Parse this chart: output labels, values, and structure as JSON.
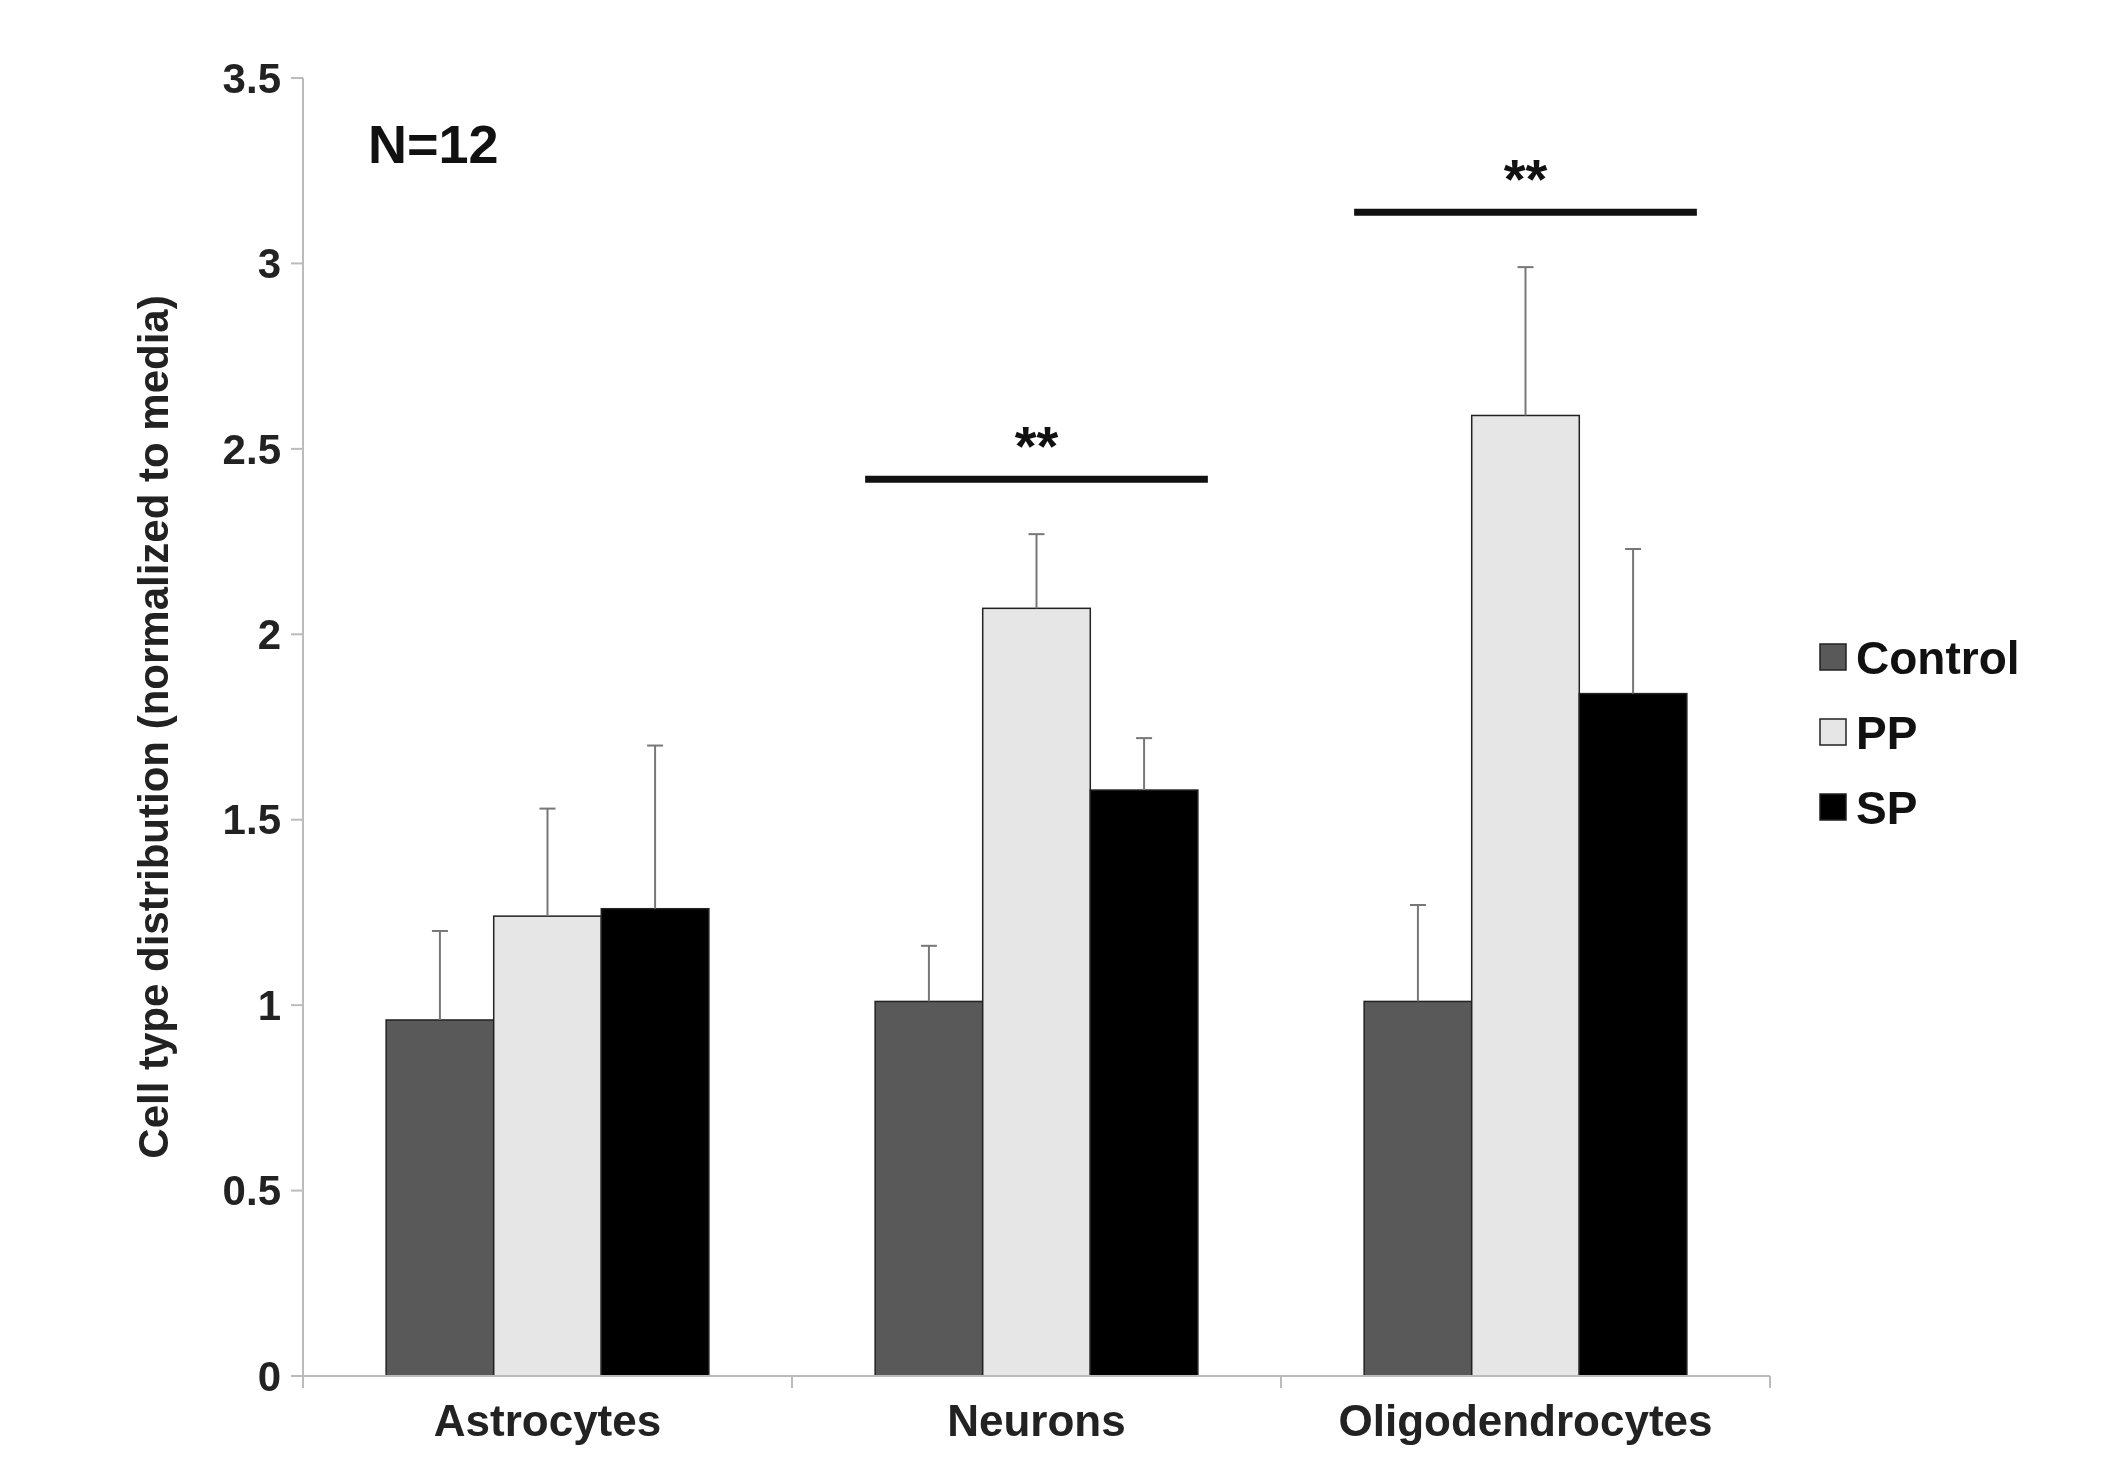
{
  "chart_data": {
    "type": "bar",
    "ylabel": "Cell type distribution (normalized to media)",
    "categories": [
      "Astrocytes",
      "Neurons",
      "Oligodendrocytes"
    ],
    "series": [
      {
        "name": "Control",
        "color": "#595959",
        "values": [
          0.96,
          1.01,
          1.01
        ],
        "errors": [
          [
            0.96,
            1.2
          ],
          [
            1.01,
            1.16
          ],
          [
            1.01,
            1.27
          ]
        ]
      },
      {
        "name": "PP",
        "color": "#e6e6e6",
        "values": [
          1.24,
          2.07,
          2.59
        ],
        "errors": [
          [
            1.24,
            1.53
          ],
          [
            2.07,
            2.27
          ],
          [
            2.59,
            2.99
          ]
        ]
      },
      {
        "name": "SP",
        "color": "#000000",
        "values": [
          1.26,
          1.58,
          1.84
        ],
        "errors": [
          [
            1.26,
            1.7
          ],
          [
            1.58,
            1.72
          ],
          [
            1.84,
            2.23
          ]
        ]
      }
    ],
    "ylim": [
      0,
      3.5
    ],
    "yticks": [
      0,
      0.5,
      1,
      1.5,
      2,
      2.5,
      3,
      3.5
    ],
    "grid": false,
    "legend": "right",
    "annotations": [
      "N=12",
      "**",
      "**"
    ]
  }
}
